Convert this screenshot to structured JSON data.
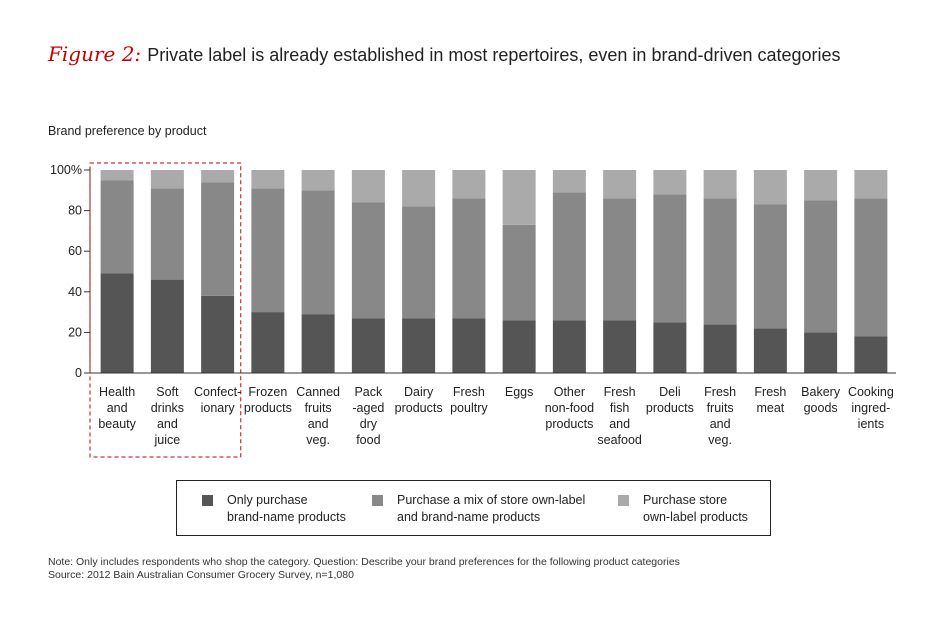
{
  "title": {
    "figure_label": "Figure 2:",
    "text": "Private label is already established in most repertoires, even in brand-driven categories"
  },
  "chart_data": {
    "type": "bar",
    "stacked": true,
    "ylabel": "Brand preference by product",
    "ylim": [
      0,
      100
    ],
    "yticks": [
      "0",
      "20",
      "40",
      "60",
      "80",
      "100%"
    ],
    "categories": [
      [
        "Health",
        "and",
        "beauty"
      ],
      [
        "Soft",
        "drinks",
        "and",
        "juice"
      ],
      [
        "Confect-",
        "ionary"
      ],
      [
        "Frozen",
        "products"
      ],
      [
        "Canned",
        "fruits",
        "and",
        "veg."
      ],
      [
        "Pack",
        "-aged",
        "dry",
        "food"
      ],
      [
        "Dairy",
        "products"
      ],
      [
        "Fresh",
        "poultry"
      ],
      [
        "Eggs"
      ],
      [
        "Other",
        "non-food",
        "products"
      ],
      [
        "Fresh",
        "fish",
        "and",
        "seafood"
      ],
      [
        "Deli",
        "products"
      ],
      [
        "Fresh",
        "fruits",
        "and",
        "veg."
      ],
      [
        "Fresh",
        "meat"
      ],
      [
        "Bakery",
        "goods"
      ],
      [
        "Cooking",
        "ingred-",
        "ients"
      ]
    ],
    "series": [
      {
        "name": "Only purchase brand-name products",
        "color": "#555555",
        "values": [
          49,
          46,
          38,
          30,
          29,
          27,
          27,
          27,
          26,
          26,
          26,
          25,
          24,
          22,
          20,
          18
        ]
      },
      {
        "name": "Purchase a mix of store own-label and brand-name products",
        "color": "#888888",
        "values": [
          46,
          45,
          56,
          61,
          61,
          57,
          55,
          59,
          47,
          63,
          60,
          63,
          62,
          61,
          65,
          68
        ]
      },
      {
        "name": "Purchase store own-label products",
        "color": "#aaaaaa",
        "values": [
          5,
          9,
          6,
          9,
          10,
          16,
          18,
          14,
          27,
          11,
          14,
          12,
          14,
          17,
          15,
          14
        ]
      }
    ],
    "highlight": {
      "group": [
        0,
        1,
        2
      ],
      "style": "dashed-red-box"
    }
  },
  "legend": [
    {
      "lines": [
        "Only purchase",
        "brand-name products"
      ],
      "color": "#555555"
    },
    {
      "lines": [
        "Purchase a mix of store own-label",
        "and brand-name products"
      ],
      "color": "#888888"
    },
    {
      "lines": [
        "Purchase store",
        "own-label products"
      ],
      "color": "#aaaaaa"
    }
  ],
  "note": {
    "line1": "Note: Only includes respondents who shop the category. Question: Describe your brand preferences for the following product categories",
    "line2": "Source: 2012 Bain Australian Consumer Grocery Survey, n=1,080"
  }
}
